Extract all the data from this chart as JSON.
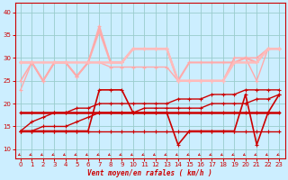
{
  "bg_color": "#cceeff",
  "grid_color": "#99cccc",
  "xlabel": "Vent moyen/en rafales ( km/h )",
  "xlabel_color": "#cc0000",
  "tick_color": "#cc0000",
  "ylim": [
    8,
    42
  ],
  "xlim": [
    -0.5,
    23.5
  ],
  "yticks": [
    10,
    15,
    20,
    25,
    30,
    35,
    40
  ],
  "xticks": [
    0,
    1,
    2,
    3,
    4,
    5,
    6,
    7,
    8,
    9,
    10,
    11,
    12,
    13,
    14,
    15,
    16,
    17,
    18,
    19,
    20,
    21,
    22,
    23
  ],
  "lines": [
    {
      "x": [
        0,
        1,
        2,
        3,
        4,
        5,
        6,
        7,
        8,
        9,
        10,
        11,
        12,
        13,
        14,
        15,
        16,
        17,
        18,
        19,
        20,
        21,
        22,
        23
      ],
      "y": [
        14,
        14,
        14,
        14,
        14,
        14,
        14,
        14,
        14,
        14,
        14,
        14,
        14,
        14,
        14,
        14,
        14,
        14,
        14,
        14,
        14,
        14,
        14,
        14
      ],
      "color": "#cc0000",
      "lw": 1.0,
      "marker": "+"
    },
    {
      "x": [
        0,
        1,
        2,
        3,
        4,
        5,
        6,
        7,
        8,
        9,
        10,
        11,
        12,
        13,
        14,
        15,
        16,
        17,
        18,
        19,
        20,
        21,
        22,
        23
      ],
      "y": [
        14,
        14,
        15,
        15,
        15,
        16,
        17,
        18,
        18,
        18,
        18,
        19,
        19,
        19,
        19,
        19,
        19,
        20,
        20,
        20,
        20,
        21,
        21,
        22
      ],
      "color": "#cc0000",
      "lw": 1.0,
      "marker": "+"
    },
    {
      "x": [
        0,
        1,
        2,
        3,
        4,
        5,
        6,
        7,
        8,
        9,
        10,
        11,
        12,
        13,
        14,
        15,
        16,
        17,
        18,
        19,
        20,
        21,
        22,
        23
      ],
      "y": [
        18,
        18,
        18,
        18,
        18,
        18,
        18,
        18,
        18,
        18,
        18,
        18,
        18,
        18,
        18,
        18,
        18,
        18,
        18,
        18,
        18,
        18,
        18,
        18
      ],
      "color": "#cc0000",
      "lw": 1.8,
      "marker": "+"
    },
    {
      "x": [
        0,
        1,
        2,
        3,
        4,
        5,
        6,
        7,
        8,
        9,
        10,
        11,
        12,
        13,
        14,
        15,
        16,
        17,
        18,
        19,
        20,
        21,
        22,
        23
      ],
      "y": [
        14,
        16,
        17,
        18,
        18,
        19,
        19,
        20,
        20,
        20,
        20,
        20,
        20,
        20,
        21,
        21,
        21,
        22,
        22,
        22,
        23,
        23,
        23,
        23
      ],
      "color": "#cc0000",
      "lw": 1.0,
      "marker": "+"
    },
    {
      "x": [
        0,
        1,
        2,
        3,
        4,
        5,
        6,
        7,
        8,
        9,
        10,
        11,
        12,
        13,
        14,
        15,
        16,
        17,
        18,
        19,
        20,
        21,
        22,
        23
      ],
      "y": [
        14,
        14,
        14,
        14,
        14,
        14,
        14,
        23,
        23,
        23,
        18,
        18,
        18,
        18,
        11,
        14,
        14,
        14,
        14,
        14,
        22,
        11,
        18,
        22
      ],
      "color": "#cc0000",
      "lw": 1.2,
      "marker": "+"
    },
    {
      "x": [
        0,
        1,
        2,
        3,
        4,
        5,
        6,
        7,
        8,
        9,
        10,
        11,
        12,
        13,
        14,
        15,
        16,
        17,
        18,
        19,
        20,
        21,
        22,
        23
      ],
      "y": [
        23,
        29,
        25,
        29,
        29,
        26,
        29,
        29,
        28,
        28,
        28,
        28,
        28,
        28,
        25,
        25,
        25,
        25,
        25,
        29,
        30,
        25,
        32,
        32
      ],
      "color": "#ffaaaa",
      "lw": 1.0,
      "marker": "+"
    },
    {
      "x": [
        0,
        1,
        2,
        3,
        4,
        5,
        6,
        7,
        8,
        9,
        10,
        11,
        12,
        13,
        14,
        15,
        16,
        17,
        18,
        19,
        20,
        21,
        22,
        23
      ],
      "y": [
        25,
        29,
        25,
        29,
        29,
        26,
        29,
        37,
        29,
        29,
        32,
        32,
        32,
        32,
        25,
        25,
        25,
        25,
        25,
        30,
        30,
        30,
        32,
        32
      ],
      "color": "#ffaaaa",
      "lw": 1.2,
      "marker": "+"
    },
    {
      "x": [
        0,
        1,
        2,
        3,
        4,
        5,
        6,
        7,
        8,
        9,
        10,
        11,
        12,
        13,
        14,
        15,
        16,
        17,
        18,
        19,
        20,
        21,
        22,
        23
      ],
      "y": [
        29,
        29,
        25,
        29,
        29,
        26,
        29,
        36,
        29,
        29,
        32,
        32,
        32,
        32,
        25,
        29,
        29,
        29,
        29,
        29,
        30,
        29,
        32,
        32
      ],
      "color": "#ffaaaa",
      "lw": 1.5,
      "marker": "+"
    },
    {
      "x": [
        0,
        1,
        2,
        3,
        4,
        5,
        6,
        7,
        8,
        9,
        10,
        11,
        12,
        13,
        14,
        15,
        16,
        17,
        18,
        19,
        20,
        21,
        22,
        23
      ],
      "y": [
        29,
        29,
        29,
        29,
        29,
        29,
        29,
        29,
        29,
        29,
        32,
        32,
        32,
        32,
        25,
        25,
        25,
        25,
        25,
        29,
        29,
        29,
        32,
        32
      ],
      "color": "#ffbbbb",
      "lw": 1.8,
      "marker": "+"
    }
  ],
  "wind_arrows": {
    "x": [
      0,
      1,
      2,
      3,
      4,
      5,
      6,
      7,
      8,
      9,
      10,
      11,
      12,
      13,
      14,
      15,
      16,
      17,
      18,
      19,
      20,
      21,
      22,
      23
    ],
    "y": 9.0,
    "color": "#cc0000",
    "size": 4
  }
}
